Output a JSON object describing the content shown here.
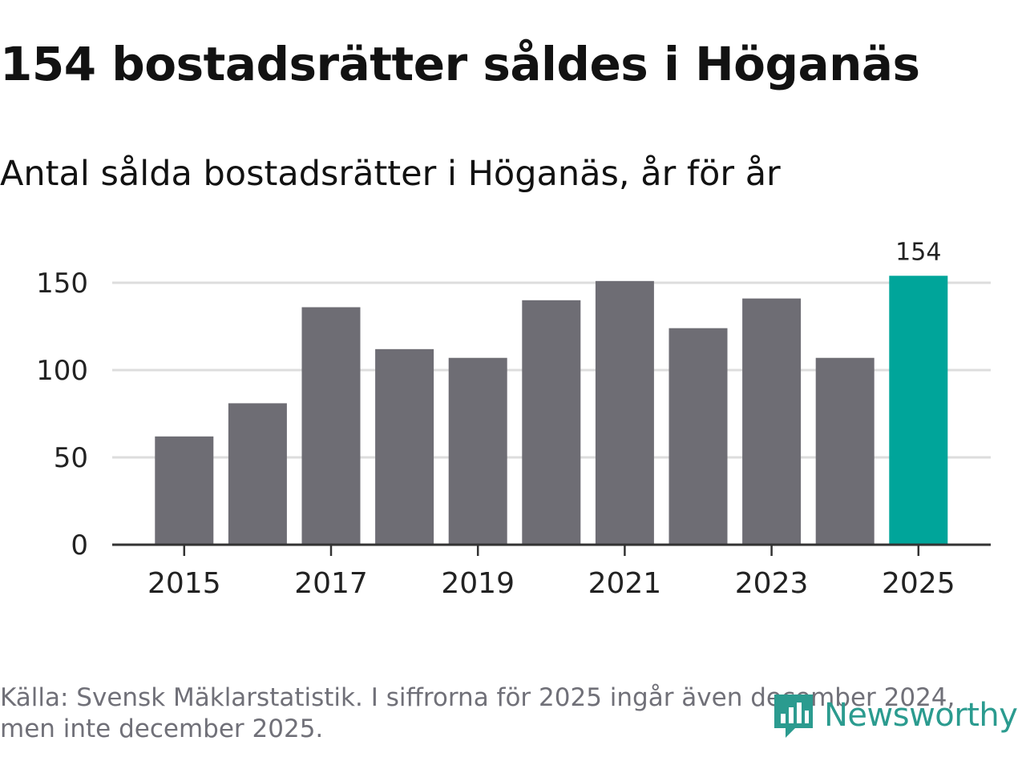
{
  "header": {
    "title": "154 bostadsrätter såldes i Höganäs",
    "subtitle": "Antal sålda bostadsrätter i Höganäs, år för år"
  },
  "footer": {
    "source_line1": "Källa: Svensk Mäklarstatistik. I siffrorna för 2025 ingår även december 2024,",
    "source_line2": "men inte december 2025.",
    "brand": "Newsworthy"
  },
  "colors": {
    "bar": "#6e6d74",
    "highlight": "#00a59a",
    "grid": "#dddddd",
    "axis": "#333333",
    "text": "#222222",
    "brand": "#2b9b8f"
  },
  "chart_data": {
    "type": "bar",
    "title": "Antal sålda bostadsrätter i Höganäs, år för år",
    "xlabel": "",
    "ylabel": "",
    "categories": [
      "2015",
      "2016",
      "2017",
      "2018",
      "2019",
      "2020",
      "2021",
      "2022",
      "2023",
      "2024",
      "2025"
    ],
    "values": [
      62,
      81,
      136,
      112,
      107,
      140,
      151,
      124,
      141,
      107,
      154
    ],
    "highlight_index": 10,
    "data_labels": [
      {
        "index": 10,
        "text": "154"
      }
    ],
    "ylim": [
      0,
      160
    ],
    "yticks": [
      0,
      50,
      100,
      150
    ],
    "xtick_labels": [
      "2015",
      "2017",
      "2019",
      "2021",
      "2023",
      "2025"
    ],
    "grid": true,
    "legend": "none"
  }
}
